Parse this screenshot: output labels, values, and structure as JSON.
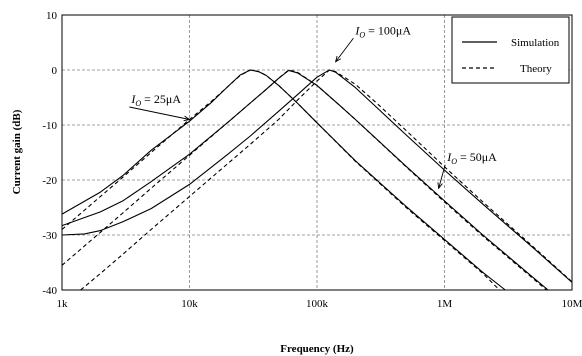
{
  "chart_data": {
    "type": "line",
    "xlabel": "Frequency (Hz)",
    "ylabel": "Current gain (dB)",
    "x_scale": "log",
    "xlim": [
      1000,
      10000000
    ],
    "ylim": [
      -40,
      10
    ],
    "grid": true,
    "legend_position": "top-right",
    "x_ticks": [
      {
        "value": 1000,
        "label": "1k"
      },
      {
        "value": 10000,
        "label": "10k"
      },
      {
        "value": 100000,
        "label": "100k"
      },
      {
        "value": 1000000,
        "label": "1M"
      },
      {
        "value": 10000000,
        "label": "10M"
      }
    ],
    "y_ticks": [
      {
        "value": 10,
        "label": "10"
      },
      {
        "value": 0,
        "label": "0"
      },
      {
        "value": -10,
        "label": "-10"
      },
      {
        "value": -20,
        "label": "-20"
      },
      {
        "value": -30,
        "label": "-30"
      },
      {
        "value": -40,
        "label": "-40"
      }
    ],
    "legend": [
      {
        "label": "Simulation",
        "style": "solid"
      },
      {
        "label": "Theory",
        "style": "dashed"
      }
    ],
    "series": [
      {
        "legend": "Simulation",
        "style": "solid",
        "bias": "25μA",
        "points": [
          [
            1000,
            -26.2
          ],
          [
            2000,
            -22.2
          ],
          [
            3000,
            -19.2
          ],
          [
            5000,
            -14.6
          ],
          [
            10000,
            -9.3
          ],
          [
            15000,
            -5.8
          ],
          [
            20000,
            -3.0
          ],
          [
            25000,
            -0.9
          ],
          [
            30000,
            0.0
          ],
          [
            35000,
            -0.3
          ],
          [
            40000,
            -1.0
          ],
          [
            50000,
            -2.8
          ],
          [
            70000,
            -6.0
          ],
          [
            100000,
            -9.6
          ],
          [
            200000,
            -16.5
          ],
          [
            500000,
            -24.8
          ],
          [
            1000000,
            -30.8
          ],
          [
            2000000,
            -36.8
          ],
          [
            3000000,
            -40.0
          ]
        ]
      },
      {
        "legend": "Simulation",
        "style": "solid",
        "bias": "50μA",
        "points": [
          [
            1000,
            -28.3
          ],
          [
            2000,
            -25.8
          ],
          [
            3000,
            -23.8
          ],
          [
            5000,
            -20.3
          ],
          [
            10000,
            -15.3
          ],
          [
            20000,
            -9.5
          ],
          [
            30000,
            -6.0
          ],
          [
            40000,
            -3.5
          ],
          [
            50000,
            -1.5
          ],
          [
            60000,
            -0.1
          ],
          [
            70000,
            -0.5
          ],
          [
            100000,
            -2.8
          ],
          [
            150000,
            -6.4
          ],
          [
            200000,
            -9.0
          ],
          [
            500000,
            -17.5
          ],
          [
            1000000,
            -23.8
          ],
          [
            2000000,
            -30.0
          ],
          [
            5000000,
            -37.8
          ],
          [
            6500000,
            -40.0
          ]
        ]
      },
      {
        "legend": "Simulation",
        "style": "solid",
        "bias": "100μA",
        "points": [
          [
            1000,
            -30.0
          ],
          [
            1500,
            -29.8
          ],
          [
            2000,
            -29.2
          ],
          [
            3000,
            -27.6
          ],
          [
            5000,
            -25.2
          ],
          [
            10000,
            -20.8
          ],
          [
            20000,
            -15.3
          ],
          [
            30000,
            -12.0
          ],
          [
            50000,
            -7.5
          ],
          [
            70000,
            -4.5
          ],
          [
            100000,
            -1.3
          ],
          [
            125000,
            0.0
          ],
          [
            140000,
            -0.4
          ],
          [
            200000,
            -3.2
          ],
          [
            300000,
            -7.0
          ],
          [
            500000,
            -11.8
          ],
          [
            1000000,
            -18.2
          ],
          [
            2000000,
            -24.4
          ],
          [
            5000000,
            -32.4
          ],
          [
            10000000,
            -38.6
          ]
        ]
      },
      {
        "legend": "Theory",
        "style": "dashed",
        "bias": "25μA",
        "points": [
          [
            1000,
            -29.0
          ],
          [
            2000,
            -23.0
          ],
          [
            3000,
            -19.5
          ],
          [
            5000,
            -15.0
          ],
          [
            10000,
            -9.0
          ],
          [
            15000,
            -5.6
          ],
          [
            20000,
            -3.0
          ],
          [
            25000,
            -1.0
          ],
          [
            30000,
            0.0
          ],
          [
            35000,
            -0.3
          ],
          [
            40000,
            -1.0
          ],
          [
            50000,
            -2.8
          ],
          [
            70000,
            -6.0
          ],
          [
            100000,
            -9.6
          ],
          [
            200000,
            -16.6
          ],
          [
            500000,
            -25.0
          ],
          [
            1000000,
            -31.0
          ],
          [
            2000000,
            -37.0
          ],
          [
            2700000,
            -40.0
          ]
        ]
      },
      {
        "legend": "Theory",
        "style": "dashed",
        "bias": "50μA",
        "points": [
          [
            1000,
            -35.5
          ],
          [
            2000,
            -29.5
          ],
          [
            3000,
            -26.0
          ],
          [
            5000,
            -21.5
          ],
          [
            10000,
            -15.5
          ],
          [
            20000,
            -9.5
          ],
          [
            30000,
            -6.0
          ],
          [
            40000,
            -3.5
          ],
          [
            50000,
            -1.5
          ],
          [
            60000,
            0.0
          ],
          [
            70000,
            -0.4
          ],
          [
            100000,
            -2.8
          ],
          [
            150000,
            -6.4
          ],
          [
            200000,
            -9.0
          ],
          [
            500000,
            -17.6
          ],
          [
            1000000,
            -24.0
          ],
          [
            2000000,
            -30.2
          ],
          [
            5000000,
            -38.0
          ],
          [
            6300000,
            -40.0
          ]
        ]
      },
      {
        "legend": "Theory",
        "style": "dashed",
        "bias": "100μA",
        "points": [
          [
            1400,
            -40.0
          ],
          [
            2000,
            -37.0
          ],
          [
            3000,
            -33.5
          ],
          [
            5000,
            -29.0
          ],
          [
            10000,
            -23.0
          ],
          [
            20000,
            -17.0
          ],
          [
            30000,
            -13.5
          ],
          [
            50000,
            -9.0
          ],
          [
            70000,
            -5.5
          ],
          [
            100000,
            -2.0
          ],
          [
            125000,
            0.0
          ],
          [
            140000,
            -0.3
          ],
          [
            200000,
            -2.6
          ],
          [
            300000,
            -6.2
          ],
          [
            500000,
            -11.0
          ],
          [
            1000000,
            -17.6
          ],
          [
            2000000,
            -24.0
          ],
          [
            5000000,
            -32.2
          ],
          [
            10000000,
            -38.5
          ]
        ]
      }
    ],
    "annotations": [
      {
        "var": "I",
        "sub": "O",
        "text": " = 25μA",
        "x": 3500,
        "y": -6,
        "arrow_to": [
          10000,
          -9
        ]
      },
      {
        "var": "I",
        "sub": "O",
        "text": " = 100μA",
        "x": 200000,
        "y": 6.5,
        "arrow_to": [
          140000,
          1.5
        ]
      },
      {
        "var": "I",
        "sub": "O",
        "text": " = 50μA",
        "x": 1050000,
        "y": -16.5,
        "arrow_to": [
          900000,
          -21.5
        ]
      }
    ]
  }
}
